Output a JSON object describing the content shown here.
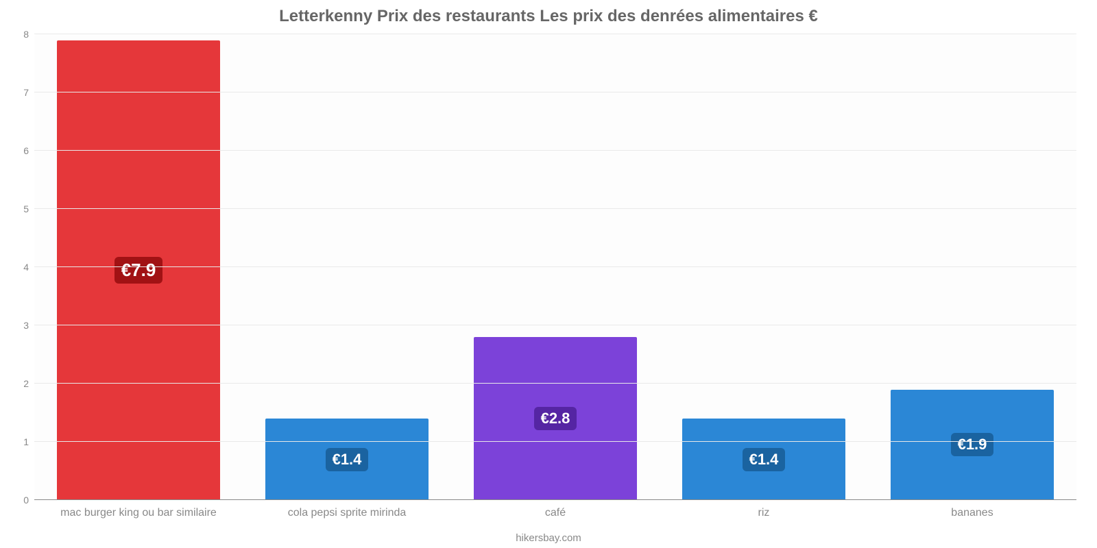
{
  "chart": {
    "type": "bar",
    "title": "Letterkenny Prix des restaurants Les prix des denrées alimentaires €",
    "title_fontsize": 24,
    "title_color": "#666666",
    "background_color": "#ffffff",
    "plot_background_color": "#fdfdfd",
    "grid_color": "#e9e9e9",
    "axis_line_color": "#888888",
    "tick_color": "#888888",
    "tick_fontsize": 14,
    "category_label_color": "#888888",
    "category_label_fontsize": 16,
    "bar_width_pct": 78,
    "ylim": [
      0,
      8
    ],
    "ytick_step": 1,
    "footer": "hikersbay.com",
    "footer_color": "#888888",
    "footer_fontsize": 15,
    "value_label_fontsize_large": 26,
    "value_label_fontsize_small": 22,
    "categories": [
      "mac burger king ou bar similaire",
      "cola pepsi sprite mirinda",
      "café",
      "riz",
      "bananes"
    ],
    "values": [
      7.9,
      1.4,
      2.8,
      1.4,
      1.9
    ],
    "value_labels": [
      "€7.9",
      "€1.4",
      "€2.8",
      "€1.4",
      "€1.9"
    ],
    "bar_colors": [
      "#e5373a",
      "#2b87d6",
      "#7c42d9",
      "#2b87d6",
      "#2b87d6"
    ],
    "label_bg_colors": [
      "#a11214",
      "#1a63a0",
      "#5525a3",
      "#1a63a0",
      "#1a63a0"
    ]
  }
}
